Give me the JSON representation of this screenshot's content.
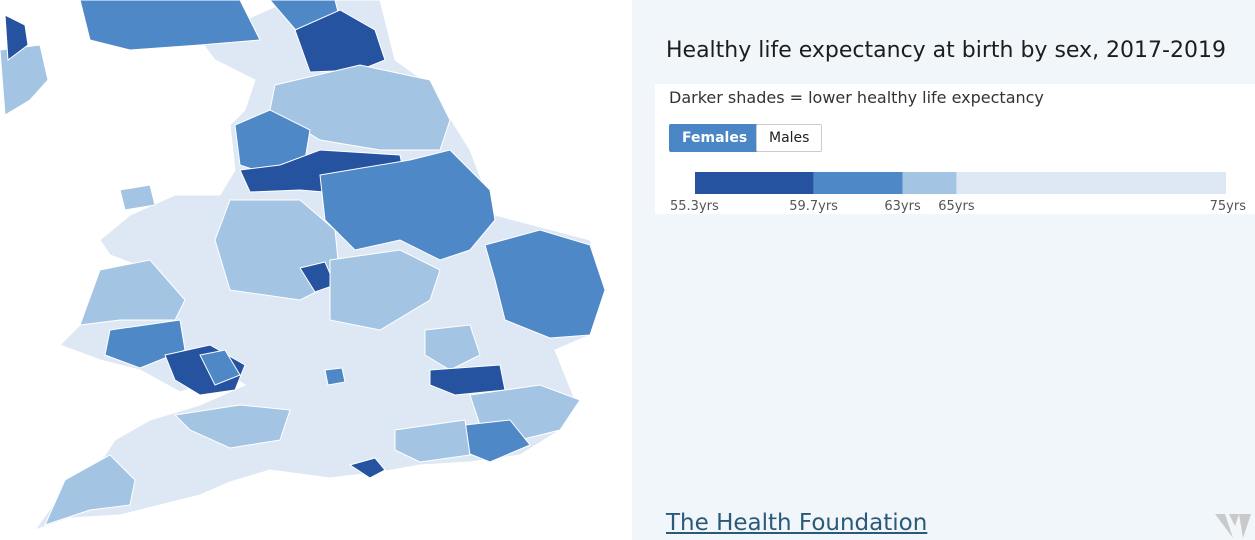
{
  "title": "Healthy life expectancy at birth by sex, 2017-2019",
  "subtitle": "Darker shades = lower healthy life expectancy",
  "tabs": [
    "Females",
    "Males"
  ],
  "legend": {
    "xlim": [
      55.3,
      75
    ],
    "ticks": [
      {
        "value": 55.3,
        "label": "55.3yrs"
      },
      {
        "value": 59.7,
        "label": "59.7yrs"
      },
      {
        "value": 63,
        "label": "63yrs"
      },
      {
        "value": 65,
        "label": "65yrs"
      },
      {
        "value": 75,
        "label": "75yrs"
      }
    ],
    "colors": [
      "#2553a0",
      "#4f88c6",
      "#a3c4e3",
      "#dde8f4"
    ]
  },
  "footer": {
    "link": "The Health Foundation"
  }
}
